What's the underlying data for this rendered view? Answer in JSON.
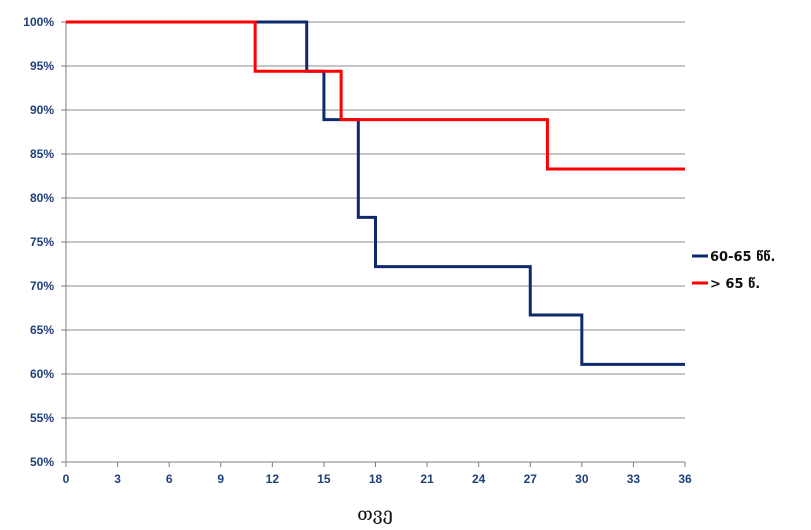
{
  "colors": {
    "series_1": "#0e2a6d",
    "series_2": "#ff0000",
    "grid": "#8c8c8c",
    "axis": "#7f7f7f",
    "tick_text": "#1f3f7a"
  },
  "chart_data": {
    "type": "line",
    "subtype": "step",
    "title": "",
    "xlabel": "თვე",
    "ylabel": "",
    "xlim": [
      0,
      36
    ],
    "ylim": [
      50,
      100
    ],
    "x_ticks": [
      0,
      3,
      6,
      9,
      12,
      15,
      18,
      21,
      24,
      27,
      30,
      33,
      36
    ],
    "y_ticks": [
      50,
      55,
      60,
      65,
      70,
      75,
      80,
      85,
      90,
      95,
      100
    ],
    "y_tick_suffix": "%",
    "grid": "horizontal",
    "legend_position": "right",
    "series": [
      {
        "name": "60-65 წწ.",
        "color": "#0e2a6d",
        "points": [
          [
            0,
            100
          ],
          [
            14,
            100
          ],
          [
            14,
            94.4
          ],
          [
            15,
            94.4
          ],
          [
            15,
            88.9
          ],
          [
            17,
            88.9
          ],
          [
            17,
            77.8
          ],
          [
            18,
            77.8
          ],
          [
            18,
            72.2
          ],
          [
            27,
            72.2
          ],
          [
            27,
            66.7
          ],
          [
            30,
            66.7
          ],
          [
            30,
            61.1
          ],
          [
            36,
            61.1
          ]
        ]
      },
      {
        "name": "> 65 წ.",
        "color": "#ff0000",
        "points": [
          [
            0,
            100
          ],
          [
            11,
            100
          ],
          [
            11,
            94.4
          ],
          [
            16,
            94.4
          ],
          [
            16,
            88.9
          ],
          [
            28,
            88.9
          ],
          [
            28,
            83.3
          ],
          [
            36,
            83.3
          ]
        ]
      }
    ]
  }
}
